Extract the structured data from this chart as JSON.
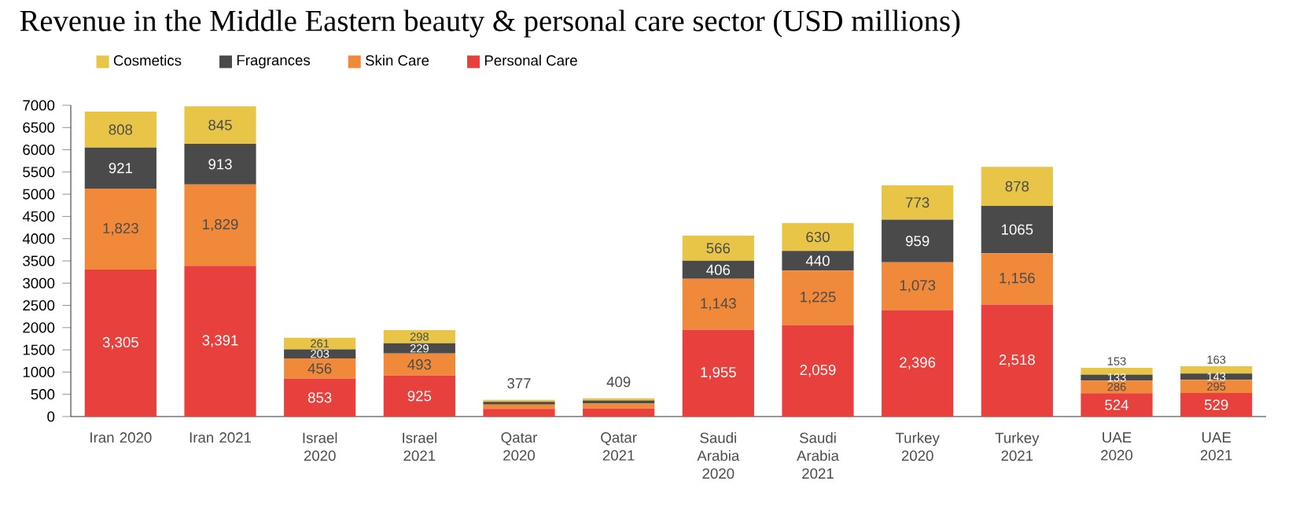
{
  "chart_data": {
    "type": "bar",
    "stacked": true,
    "title": "Revenue in the Middle Eastern beauty & personal care sector (USD millions)",
    "categories": [
      "Iran 2020",
      "Iran 2021",
      "Israel 2020",
      "Israel 2021",
      "Qatar 2020",
      "Qatar 2021",
      "Saudi Arabia 2020",
      "Saudi Arabia 2021",
      "Turkey 2020",
      "Turkey 2021",
      "UAE 2020",
      "UAE 2021"
    ],
    "series": [
      {
        "name": "Personal Care",
        "color": "#e8403c",
        "values": [
          3305,
          3391,
          853,
          925,
          170,
          180,
          1955,
          2059,
          2396,
          2518,
          524,
          529
        ],
        "value_labels": [
          "3,305",
          "3,391",
          "853",
          "925",
          null,
          null,
          "1,955",
          "2,059",
          "2,396",
          "2,518",
          "524",
          "529"
        ]
      },
      {
        "name": "Skin Care",
        "color": "#f08a3a",
        "values": [
          1823,
          1829,
          456,
          493,
          100,
          110,
          1143,
          1225,
          1073,
          1156,
          286,
          295
        ],
        "value_labels": [
          "1,823",
          "1,829",
          "456",
          "493",
          null,
          null,
          "1,143",
          "1,225",
          "1,073",
          "1,156",
          "286",
          "295"
        ]
      },
      {
        "name": "Fragrances",
        "color": "#4a4a4a",
        "values": [
          921,
          913,
          203,
          229,
          60,
          70,
          406,
          440,
          959,
          1065,
          133,
          143
        ],
        "value_labels": [
          "921",
          "913",
          "203",
          "229",
          null,
          null,
          "406",
          "440",
          "959",
          "1065",
          "133",
          "143"
        ]
      },
      {
        "name": "Cosmetics",
        "color": "#e8c547",
        "values": [
          808,
          845,
          261,
          298,
          47,
          49,
          566,
          630,
          773,
          878,
          153,
          163
        ],
        "value_labels": [
          "808",
          "845",
          "261",
          "298",
          null,
          null,
          "566",
          "630",
          "773",
          "878",
          "153",
          "163"
        ]
      }
    ],
    "totals": [
      null,
      null,
      null,
      null,
      "377",
      "409",
      null,
      null,
      null,
      null,
      null,
      null
    ],
    "ylim": [
      0,
      7000
    ],
    "yticks": [
      0,
      500,
      1000,
      1500,
      2000,
      2500,
      3000,
      3500,
      4000,
      4500,
      5000,
      5500,
      6000,
      6500,
      7000
    ],
    "grid": false,
    "legend": "top left"
  }
}
